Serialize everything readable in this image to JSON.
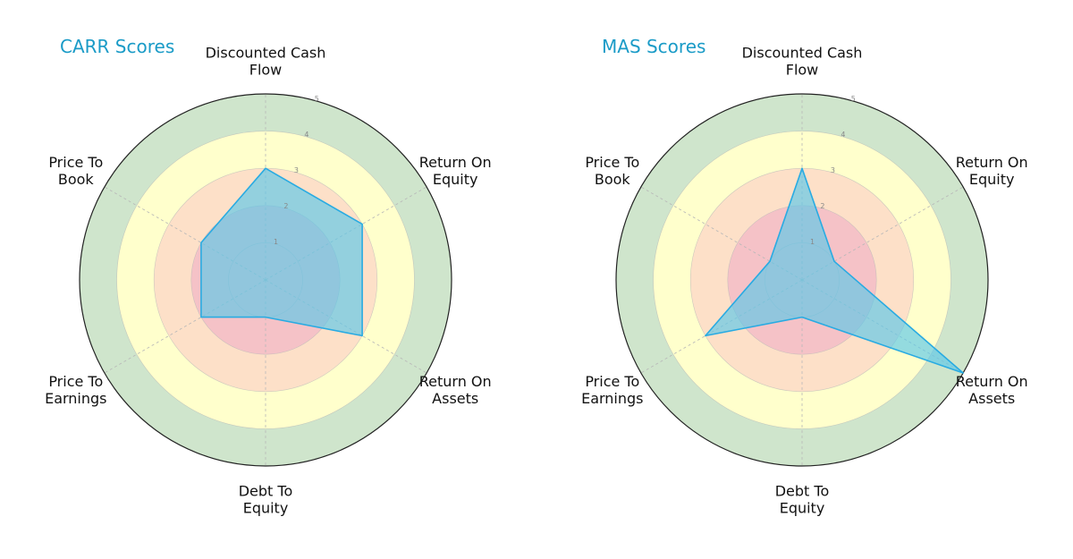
{
  "colors": {
    "title": "#1a9bc7",
    "bands": [
      "#f5c2c7",
      "#fde0c8",
      "#ffffcc",
      "#cfe5cc"
    ],
    "polygon_fill": "#5bc8ea",
    "polygon_stroke": "#29abe2",
    "outer_circle": "#222222",
    "grid": "#b8b8b8"
  },
  "chart_data": [
    {
      "type": "radar",
      "title": "CARR Scores",
      "axes": [
        "Discounted Cash\nFlow",
        "Return On\nEquity",
        "Return On\nAssets",
        "Debt To\nEquity",
        "Price To\nEarnings",
        "Price To\nBook"
      ],
      "values": [
        3,
        3,
        3,
        1,
        2,
        2
      ],
      "rlim": [
        0,
        5
      ],
      "rticks": [
        1,
        2,
        3,
        4,
        5
      ],
      "bands": [
        [
          0,
          2
        ],
        [
          2,
          3
        ],
        [
          3,
          4
        ],
        [
          4,
          5
        ]
      ]
    },
    {
      "type": "radar",
      "title": "MAS Scores",
      "axes": [
        "Discounted Cash\nFlow",
        "Return On\nEquity",
        "Return On\nAssets",
        "Debt To\nEquity",
        "Price To\nEarnings",
        "Price To\nBook"
      ],
      "values": [
        3,
        1,
        5,
        1,
        3,
        1
      ],
      "rlim": [
        0,
        5
      ],
      "rticks": [
        1,
        2,
        3,
        4,
        5
      ],
      "bands": [
        [
          0,
          2
        ],
        [
          2,
          3
        ],
        [
          3,
          4
        ],
        [
          4,
          5
        ]
      ]
    }
  ]
}
